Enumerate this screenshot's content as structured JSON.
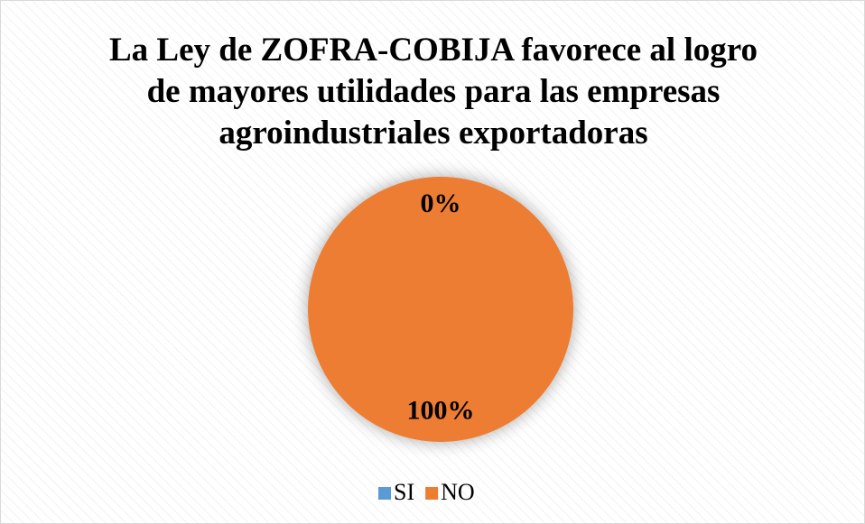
{
  "chart_data": {
    "type": "pie",
    "title": "La Ley de ZOFRA-COBIJA favorece al logro de mayores utilidades para las empresas agroindustriales exportadoras",
    "categories": [
      "SI",
      "NO"
    ],
    "values": [
      0,
      100
    ],
    "value_labels": [
      "0%",
      "100%"
    ],
    "colors": [
      "#5b9bd5",
      "#ed7d31"
    ],
    "legend": "bottom"
  }
}
